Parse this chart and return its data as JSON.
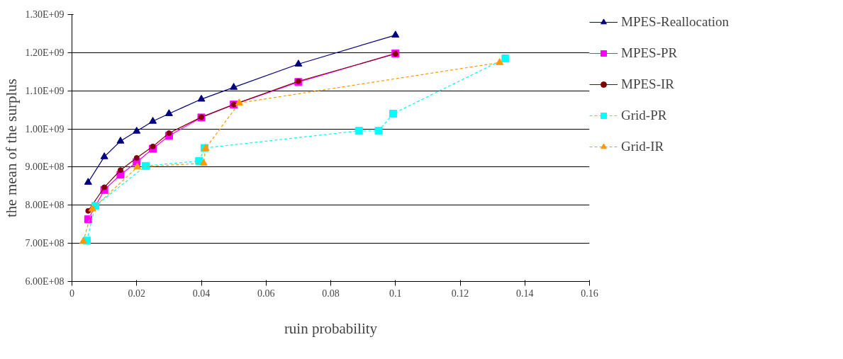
{
  "chart_data": {
    "type": "line",
    "xlabel": "ruin probability",
    "ylabel": "the mean of the surplus",
    "xlim": [
      0,
      0.16
    ],
    "xticks": [
      0,
      0.02,
      0.04,
      0.06,
      0.08,
      0.1,
      0.12,
      0.14,
      0.16
    ],
    "ylim": [
      600000000,
      1300000000
    ],
    "yticks": [
      {
        "value": 600000000,
        "label": "6.00E+08"
      },
      {
        "value": 700000000,
        "label": "7.00E+08"
      },
      {
        "value": 800000000,
        "label": "8.00E+08"
      },
      {
        "value": 900000000,
        "label": "9.00E+08"
      },
      {
        "value": 1000000000,
        "label": "1.00E+09"
      },
      {
        "value": 1100000000,
        "label": "1.10E+09"
      },
      {
        "value": 1200000000,
        "label": "1.20E+09"
      },
      {
        "value": 1300000000,
        "label": "1.30E+09"
      }
    ],
    "grid": "y",
    "legend": "right",
    "series": [
      {
        "name": "MPES-Reallocation",
        "color": "#000080",
        "marker": "triangle",
        "line_style": "solid",
        "x": [
          0.005,
          0.01,
          0.015,
          0.02,
          0.025,
          0.03,
          0.04,
          0.05,
          0.07,
          0.1
        ],
        "values": [
          860000000,
          927000000,
          968000000,
          994000000,
          1020000000,
          1040000000,
          1078000000,
          1109000000,
          1170000000,
          1246000000
        ]
      },
      {
        "name": "MPES-PR",
        "color": "#ff00ff",
        "marker": "square",
        "line_style": "solid",
        "x": [
          0.005,
          0.01,
          0.015,
          0.02,
          0.025,
          0.03,
          0.04,
          0.05,
          0.07,
          0.1
        ],
        "values": [
          763000000,
          840000000,
          880000000,
          913000000,
          948000000,
          982000000,
          1030000000,
          1064000000,
          1123000000,
          1198000000
        ]
      },
      {
        "name": "MPES-IR",
        "color": "#800000",
        "marker": "circle",
        "line_style": "solid",
        "x": [
          0.005,
          0.01,
          0.015,
          0.02,
          0.025,
          0.03,
          0.04,
          0.05,
          0.07,
          0.1
        ],
        "values": [
          785000000,
          847000000,
          892000000,
          924000000,
          954000000,
          989000000,
          1031000000,
          1064000000,
          1125000000,
          1197000000
        ]
      },
      {
        "name": "Grid-PR",
        "color": "#00ffff",
        "marker": "square",
        "line_style": "dashed",
        "x": [
          0.0046,
          0.0072,
          0.0228,
          0.0393,
          0.041,
          0.0887,
          0.0948,
          0.0993,
          0.134
        ],
        "values": [
          707000000,
          798000000,
          903000000,
          916000000,
          950000000,
          995000000,
          995000000,
          1040000000,
          1185000000
        ]
      },
      {
        "name": "Grid-IR",
        "color": "#ff9900",
        "marker": "triangle",
        "line_style": "dashed",
        "x": [
          0.0035,
          0.0063,
          0.0202,
          0.0407,
          0.0413,
          0.0517,
          0.1322
        ],
        "values": [
          705000000,
          790000000,
          900000000,
          910000000,
          949000000,
          1068000000,
          1174000000
        ]
      }
    ]
  }
}
